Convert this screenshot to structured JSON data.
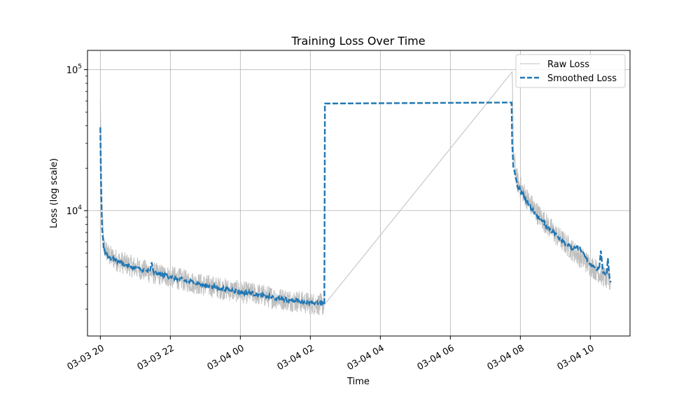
{
  "chart_data": {
    "type": "line",
    "title": "Training Loss Over Time",
    "xlabel": "Time",
    "ylabel": "Loss (log scale)",
    "yscale": "log",
    "xlim": [
      "2024-03-03 19:38",
      "2024-03-04 11:08"
    ],
    "ylim": [
      1290,
      137000
    ],
    "grid": true,
    "legend": "top-right",
    "x_ticks": [
      {
        "t": "2024-03-03 20:00",
        "label": "03-03 20"
      },
      {
        "t": "2024-03-03 22:00",
        "label": "03-03 22"
      },
      {
        "t": "2024-03-04 00:00",
        "label": "03-04 00"
      },
      {
        "t": "2024-03-04 02:00",
        "label": "03-04 02"
      },
      {
        "t": "2024-03-04 04:00",
        "label": "03-04 04"
      },
      {
        "t": "2024-03-04 06:00",
        "label": "03-04 06"
      },
      {
        "t": "2024-03-04 08:00",
        "label": "03-04 08"
      },
      {
        "t": "2024-03-04 10:00",
        "label": "03-04 10"
      }
    ],
    "y_ticks": [
      {
        "value": 10000,
        "base": "10",
        "exp": "4"
      },
      {
        "value": 100000,
        "base": "10",
        "exp": "5"
      }
    ],
    "series": [
      {
        "name": "Raw Loss",
        "color": "#bfbfbf",
        "style": "solid",
        "noisy": true,
        "points": [
          [
            "2024-03-03 20:00",
            62000
          ],
          [
            "2024-03-03 20:01",
            30000
          ],
          [
            "2024-03-03 20:03",
            9000
          ],
          [
            "2024-03-03 20:06",
            5600
          ],
          [
            "2024-03-03 20:15",
            4800
          ],
          [
            "2024-03-03 20:30",
            4400
          ],
          [
            "2024-03-03 21:00",
            3950
          ],
          [
            "2024-03-03 21:30",
            3600
          ],
          [
            "2024-03-03 22:00",
            3400
          ],
          [
            "2024-03-03 22:30",
            3150
          ],
          [
            "2024-03-03 23:00",
            2950
          ],
          [
            "2024-03-03 23:30",
            2800
          ],
          [
            "2024-03-04 00:00",
            2650
          ],
          [
            "2024-03-04 00:30",
            2550
          ],
          [
            "2024-03-04 01:00",
            2400
          ],
          [
            "2024-03-04 01:30",
            2300
          ],
          [
            "2024-03-04 02:00",
            2200
          ],
          [
            "2024-03-04 02:24",
            2150
          ],
          [
            "2024-03-04 07:46",
            110000
          ],
          [
            "2024-03-04 07:48",
            25000
          ],
          [
            "2024-03-04 07:55",
            16000
          ],
          [
            "2024-03-04 08:15",
            11500
          ],
          [
            "2024-03-04 08:30",
            9500
          ],
          [
            "2024-03-04 09:00",
            6800
          ],
          [
            "2024-03-04 09:30",
            5200
          ],
          [
            "2024-03-04 10:00",
            4100
          ],
          [
            "2024-03-04 10:20",
            3500
          ],
          [
            "2024-03-04 10:35",
            3100
          ]
        ]
      },
      {
        "name": "Smoothed Loss",
        "color": "#1f77b4",
        "style": "dashed",
        "noisy": false,
        "points": [
          [
            "2024-03-03 20:00",
            39000
          ],
          [
            "2024-03-03 20:01",
            18000
          ],
          [
            "2024-03-03 20:03",
            7500
          ],
          [
            "2024-03-03 20:06",
            5300
          ],
          [
            "2024-03-03 20:15",
            4700
          ],
          [
            "2024-03-03 20:30",
            4350
          ],
          [
            "2024-03-03 21:00",
            3900
          ],
          [
            "2024-03-03 21:25",
            3700
          ],
          [
            "2024-03-03 21:28",
            4300
          ],
          [
            "2024-03-03 21:31",
            3650
          ],
          [
            "2024-03-03 22:00",
            3400
          ],
          [
            "2024-03-03 22:30",
            3150
          ],
          [
            "2024-03-03 23:00",
            2950
          ],
          [
            "2024-03-03 23:30",
            2800
          ],
          [
            "2024-03-04 00:00",
            2650
          ],
          [
            "2024-03-04 00:30",
            2550
          ],
          [
            "2024-03-04 01:00",
            2400
          ],
          [
            "2024-03-04 01:30",
            2300
          ],
          [
            "2024-03-04 02:00",
            2250
          ],
          [
            "2024-03-04 02:24",
            2150
          ],
          [
            "2024-03-04 02:25",
            57500
          ],
          [
            "2024-03-04 07:45",
            58500
          ],
          [
            "2024-03-04 07:46",
            30000
          ],
          [
            "2024-03-04 07:48",
            21000
          ],
          [
            "2024-03-04 07:55",
            15000
          ],
          [
            "2024-03-04 08:15",
            11000
          ],
          [
            "2024-03-04 08:30",
            9000
          ],
          [
            "2024-03-04 09:00",
            6800
          ],
          [
            "2024-03-04 09:30",
            5300
          ],
          [
            "2024-03-04 09:40",
            5500
          ],
          [
            "2024-03-04 10:00",
            4100
          ],
          [
            "2024-03-04 10:15",
            3800
          ],
          [
            "2024-03-04 10:18",
            5200
          ],
          [
            "2024-03-04 10:22",
            3600
          ],
          [
            "2024-03-04 10:28",
            3500
          ],
          [
            "2024-03-04 10:30",
            4600
          ],
          [
            "2024-03-04 10:33",
            3300
          ],
          [
            "2024-03-04 10:35",
            3100
          ]
        ]
      }
    ]
  }
}
